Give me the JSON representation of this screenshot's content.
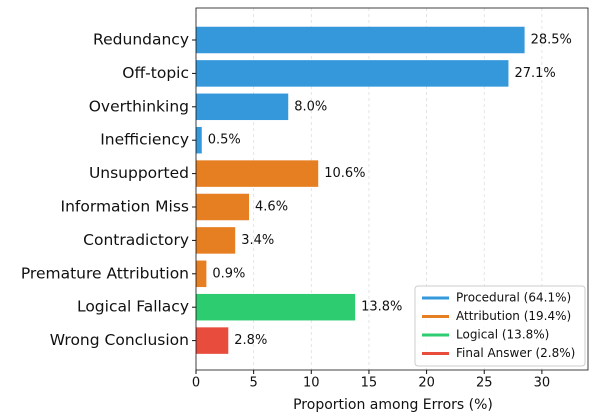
{
  "chart_data": {
    "type": "barh",
    "categories": [
      "Redundancy",
      "Off-topic",
      "Overthinking",
      "Inefficiency",
      "Unsupported",
      "Information Miss",
      "Contradictory",
      "Premature Attribution",
      "Logical Fallacy",
      "Wrong Conclusion"
    ],
    "values": [
      28.5,
      27.1,
      8.0,
      0.5,
      10.6,
      4.6,
      3.4,
      0.9,
      13.8,
      2.8
    ],
    "value_labels": [
      "28.5%",
      "27.1%",
      "8.0%",
      "0.5%",
      "10.6%",
      "4.6%",
      "3.4%",
      "0.9%",
      "13.8%",
      "2.8%"
    ],
    "colors": [
      "#3498db",
      "#3498db",
      "#3498db",
      "#3498db",
      "#e67e22",
      "#e67e22",
      "#e67e22",
      "#e67e22",
      "#2ecc71",
      "#e74c3c"
    ],
    "xlabel": "Proportion among Errors (%)",
    "xlim": [
      0,
      34
    ],
    "xticks": [
      0,
      5,
      10,
      15,
      20,
      25,
      30
    ],
    "grid": true,
    "legend": {
      "position": "lower right",
      "entries": [
        {
          "label": "Procedural (64.1%)",
          "color": "#3498db"
        },
        {
          "label": "Attribution (19.4%)",
          "color": "#e67e22"
        },
        {
          "label": "Logical (13.8%)",
          "color": "#2ecc71"
        },
        {
          "label": "Final Answer (2.8%)",
          "color": "#e74c3c"
        }
      ]
    }
  }
}
